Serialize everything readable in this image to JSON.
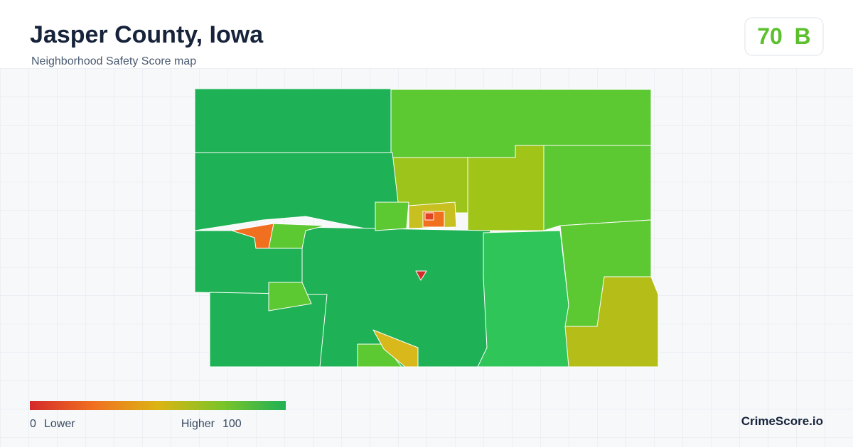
{
  "header": {
    "title": "Jasper County, Iowa",
    "subtitle": "Neighborhood Safety Score map"
  },
  "score": {
    "value": 70,
    "grade": "B"
  },
  "legend": {
    "min": 0,
    "min_label": "Lower",
    "max_label": "Higher",
    "max": 100
  },
  "brand": "CrimeScore.io"
}
